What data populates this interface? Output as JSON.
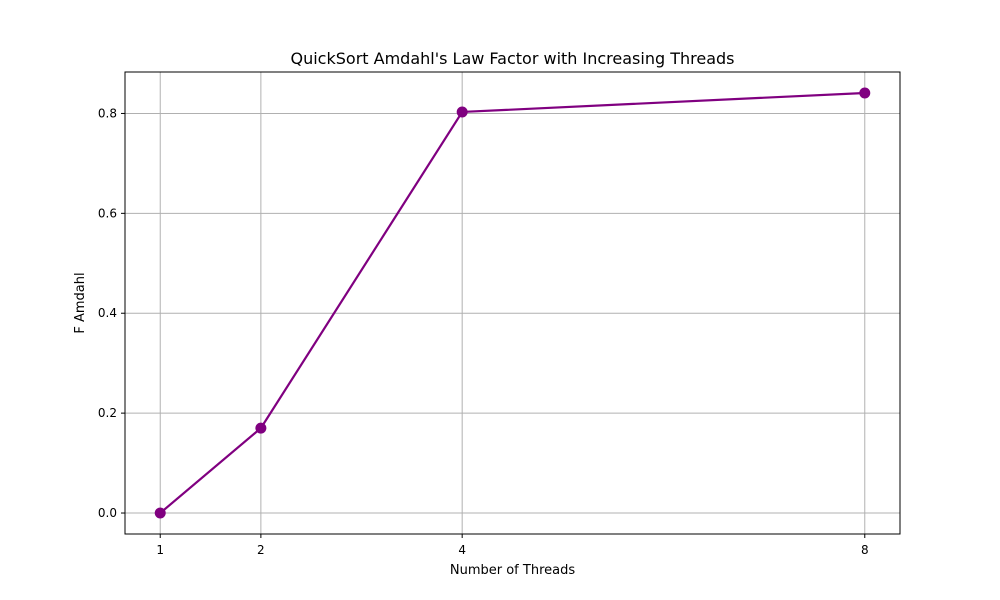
{
  "chart_data": {
    "type": "line",
    "title": "QuickSort Amdahl's Law Factor with Increasing Threads",
    "xlabel": "Number of Threads",
    "ylabel": "F Amdahl",
    "x": [
      1,
      2,
      4,
      8
    ],
    "series": [
      {
        "values": [
          0.0,
          0.17,
          0.803,
          0.841
        ],
        "color": "#800080"
      }
    ],
    "xticks": [
      1,
      2,
      4,
      8
    ],
    "xtick_labels": [
      "1",
      "2",
      "4",
      "8"
    ],
    "yticks": [
      0.0,
      0.2,
      0.4,
      0.6,
      0.8
    ],
    "ytick_labels": [
      "0.0",
      "0.2",
      "0.4",
      "0.6",
      "0.8"
    ],
    "xlim": [
      0.65,
      8.35
    ],
    "ylim": [
      -0.042,
      0.883
    ],
    "grid": true,
    "marker": "circle"
  }
}
